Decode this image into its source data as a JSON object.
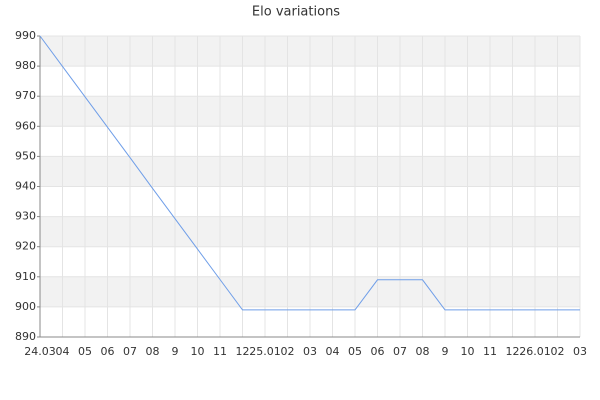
{
  "chart_data": {
    "type": "line",
    "title": "Elo variations",
    "categories": [
      "24.03",
      "04",
      "05",
      "06",
      "07",
      "08",
      "9",
      "10",
      "11",
      "12",
      "25.01",
      "02",
      "03",
      "04",
      "05",
      "06",
      "07",
      "08",
      "9",
      "10",
      "11",
      "12",
      "26.01",
      "02",
      "03"
    ],
    "series": [
      {
        "name": "Elo",
        "color": "#6f9ee8",
        "values": [
          990,
          979.9,
          969.8,
          959.7,
          949.6,
          939.4,
          929.3,
          919.2,
          909.1,
          899,
          899,
          899,
          899,
          899,
          899,
          909,
          909,
          909,
          899,
          899,
          899,
          899,
          899,
          899,
          899
        ]
      }
    ],
    "ylim": [
      890,
      990
    ],
    "yticks": [
      890,
      900,
      910,
      920,
      930,
      940,
      950,
      960,
      970,
      980,
      990
    ],
    "grid": true
  }
}
